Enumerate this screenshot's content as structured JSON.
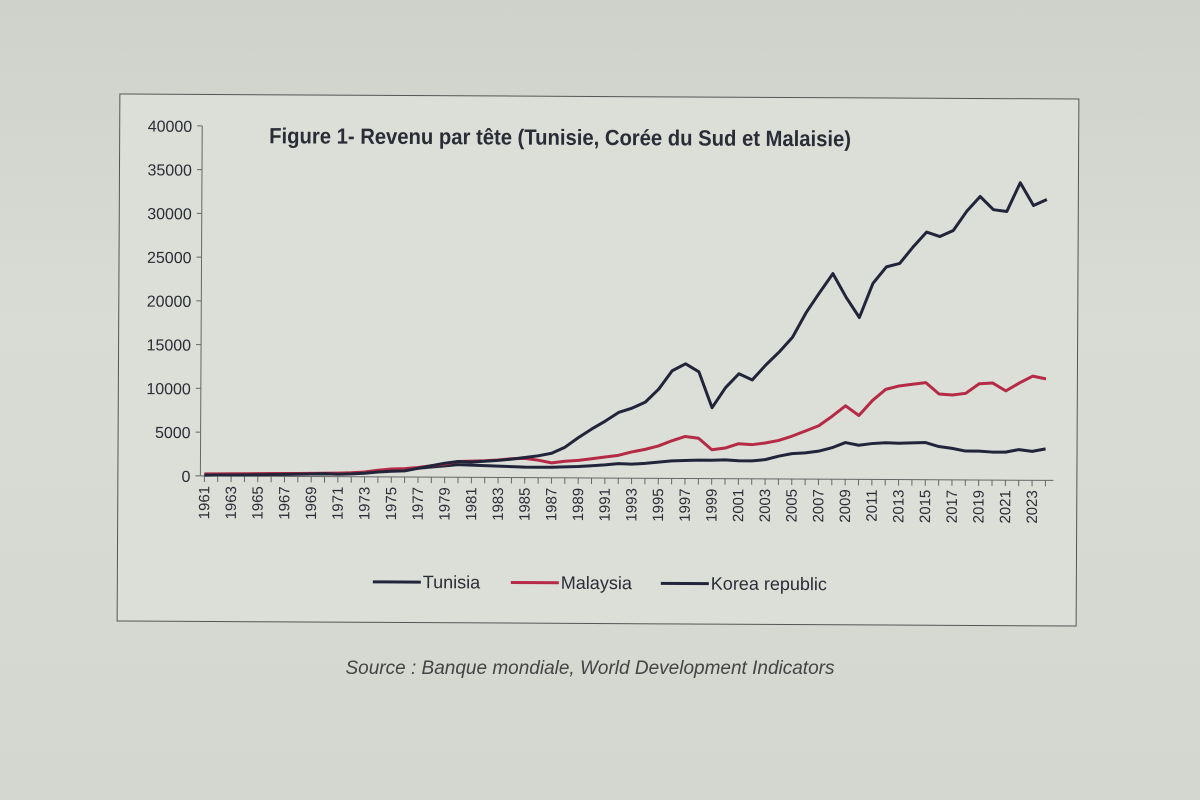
{
  "chart_data": {
    "type": "line",
    "title": "Figure 1- Revenu par tête (Tunisie, Corée du Sud et Malaisie)",
    "xlabel": "",
    "ylabel": "",
    "ylim": [
      0,
      40000
    ],
    "yticks": [
      "0",
      "5000",
      "10000",
      "15000",
      "20000",
      "25000",
      "30000",
      "35000",
      "40000"
    ],
    "x_start": 1961,
    "xticks": [
      "1961",
      "1963",
      "1965",
      "1967",
      "1969",
      "1971",
      "1973",
      "1975",
      "1977",
      "1979",
      "1981",
      "1983",
      "1985",
      "1987",
      "1989",
      "1991",
      "1993",
      "1995",
      "1997",
      "1999",
      "2001",
      "2003",
      "2005",
      "2007",
      "2009",
      "2011",
      "2013",
      "2015",
      "2017",
      "2019",
      "2021",
      "2023"
    ],
    "legend_position": "bottom",
    "series": [
      {
        "name": "Tunisia",
        "color": "#22253a",
        "values": [
          100,
          120,
          150,
          180,
          200,
          220,
          240,
          260,
          280,
          300,
          330,
          400,
          500,
          650,
          800,
          900,
          1000,
          1150,
          1300,
          1450,
          1400,
          1350,
          1300,
          1250,
          1200,
          1200,
          1200,
          1250,
          1300,
          1400,
          1500,
          1650,
          1600,
          1700,
          1850,
          2000,
          2050,
          2100,
          2100,
          2150,
          2050,
          2050,
          2200,
          2600,
          2900,
          3000,
          3200,
          3600,
          4200,
          3900,
          4100,
          4200,
          4150,
          4200,
          4250,
          3800,
          3600,
          3300,
          3300,
          3200,
          3200,
          3500,
          3300,
          3600
        ]
      },
      {
        "name": "Malaysia",
        "color": "#b52a45",
        "values": [
          230,
          240,
          260,
          280,
          300,
          320,
          330,
          340,
          360,
          380,
          400,
          450,
          550,
          750,
          900,
          950,
          1100,
          1300,
          1500,
          1800,
          1850,
          1900,
          2000,
          2150,
          2200,
          2000,
          1700,
          1900,
          2000,
          2200,
          2400,
          2600,
          3000,
          3300,
          3700,
          4300,
          4800,
          4600,
          3300,
          3500,
          4000,
          3900,
          4100,
          4400,
          4900,
          5500,
          6100,
          7200,
          8400,
          7300,
          9000,
          10300,
          10700,
          10900,
          11100,
          9800,
          9700,
          9900,
          11000,
          11100,
          10200,
          11100,
          11900,
          11600
        ]
      },
      {
        "name": "Korea republic",
        "color": "#22253a",
        "values": [
          100,
          110,
          130,
          150,
          170,
          200,
          230,
          260,
          290,
          330,
          280,
          320,
          400,
          550,
          650,
          700,
          1000,
          1300,
          1600,
          1800,
          1750,
          1850,
          1950,
          2100,
          2300,
          2500,
          2800,
          3500,
          4600,
          5600,
          6500,
          7500,
          8000,
          8700,
          10200,
          12300,
          13100,
          12200,
          8100,
          10400,
          12000,
          11300,
          13000,
          14500,
          16200,
          19000,
          21300,
          23500,
          20800,
          18500,
          22400,
          24300,
          24700,
          26600,
          28300,
          27800,
          28500,
          30700,
          32400,
          30900,
          30700,
          34000,
          31400,
          32100
        ]
      }
    ],
    "source": "Source : Banque mondiale, World Development Indicators"
  }
}
